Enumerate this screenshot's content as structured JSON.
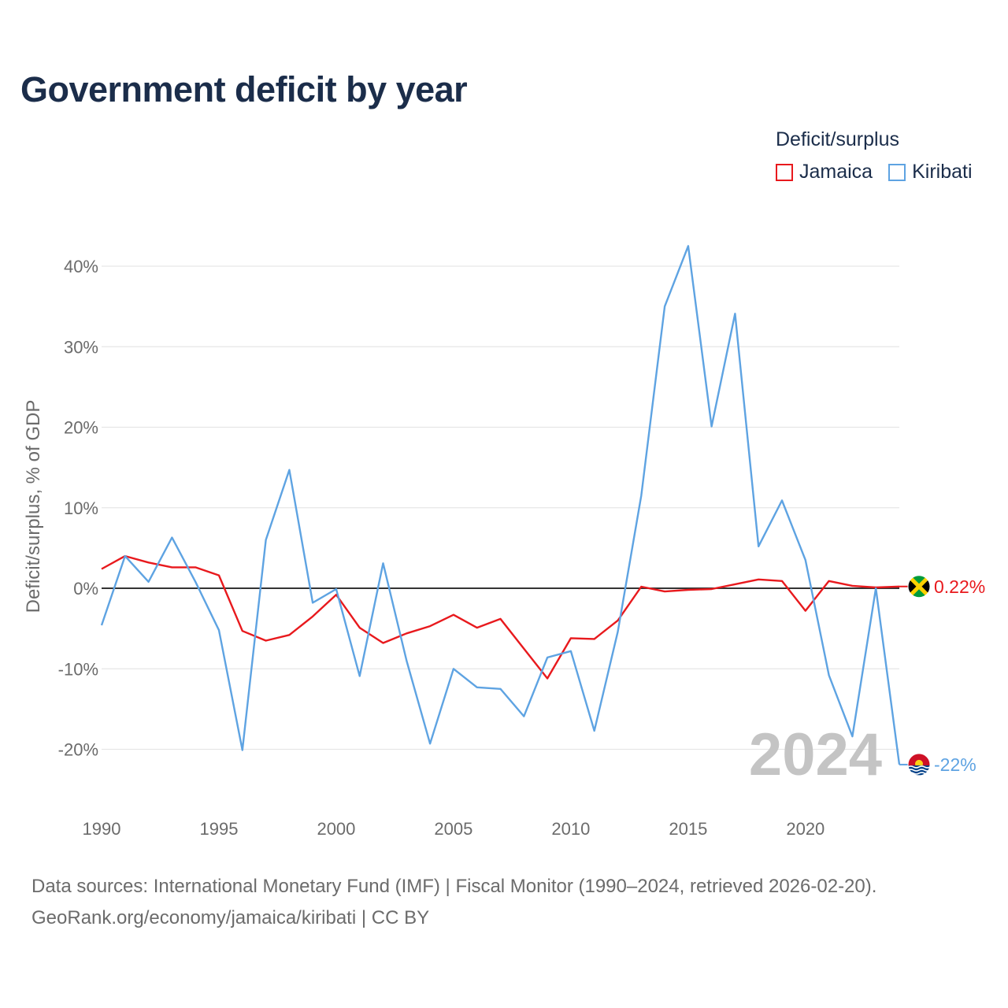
{
  "title": "Government deficit by year",
  "legend": {
    "title": "Deficit/surplus",
    "items": [
      {
        "label": "Jamaica",
        "color": "#e8191d"
      },
      {
        "label": "Kiribati",
        "color": "#5ea3e2"
      }
    ]
  },
  "sources": {
    "line1": "Data sources: International Monetary Fund (IMF) | Fiscal Monitor (1990–2024, retrieved 2026-02-20).",
    "line2": "GeoRank.org/economy/jamaica/kiribati | CC BY"
  },
  "watermark_year": "2024",
  "chart_data": {
    "type": "line",
    "title": "Government deficit by year",
    "xlabel": "",
    "ylabel": "Deficit/surplus, % of GDP",
    "xlim": [
      1990,
      2024
    ],
    "ylim": [
      -22,
      44
    ],
    "x_ticks": [
      1990,
      1995,
      2000,
      2005,
      2010,
      2015,
      2020
    ],
    "x_tick_labels": [
      "1990",
      "1995",
      "2000",
      "2005",
      "2010",
      "2015",
      "2020"
    ],
    "y_ticks": [
      40,
      30,
      20,
      10,
      0,
      -10,
      -20
    ],
    "y_tick_labels": [
      "40%",
      "30%",
      "20%",
      "10%",
      "0%",
      "-10%",
      "-20%"
    ],
    "zero_line": true,
    "x": [
      1990,
      1991,
      1992,
      1993,
      1994,
      1995,
      1996,
      1997,
      1998,
      1999,
      2000,
      2001,
      2002,
      2003,
      2004,
      2005,
      2006,
      2007,
      2008,
      2009,
      2010,
      2011,
      2012,
      2013,
      2014,
      2015,
      2016,
      2017,
      2018,
      2019,
      2020,
      2021,
      2022,
      2023,
      2024
    ],
    "series": [
      {
        "name": "Jamaica",
        "color": "#e8191d",
        "end_label": "0.22%",
        "values": [
          2.4,
          4.0,
          3.2,
          2.6,
          2.6,
          1.6,
          -5.3,
          -6.5,
          -5.8,
          -3.5,
          -0.8,
          -4.9,
          -6.8,
          -5.6,
          -4.7,
          -3.3,
          -4.9,
          -3.8,
          -7.5,
          -11.2,
          -6.2,
          -6.3,
          -4.0,
          0.2,
          -0.4,
          -0.2,
          -0.1,
          0.5,
          1.1,
          0.9,
          -2.8,
          0.9,
          0.3,
          0.1,
          0.22
        ]
      },
      {
        "name": "Kiribati",
        "color": "#5ea3e2",
        "end_label": "-22%",
        "values": [
          -4.6,
          4.0,
          0.8,
          6.3,
          0.8,
          -5.2,
          -20.1,
          6.0,
          14.7,
          -1.8,
          -0.1,
          -10.9,
          3.1,
          -9.0,
          -19.3,
          -10.0,
          -12.3,
          -12.5,
          -15.9,
          -8.6,
          -7.8,
          -17.7,
          -5.4,
          11.5,
          35.0,
          42.5,
          20.1,
          34.1,
          5.2,
          10.9,
          3.5,
          -10.8,
          -18.4,
          0.0,
          -21.9
        ]
      }
    ]
  }
}
